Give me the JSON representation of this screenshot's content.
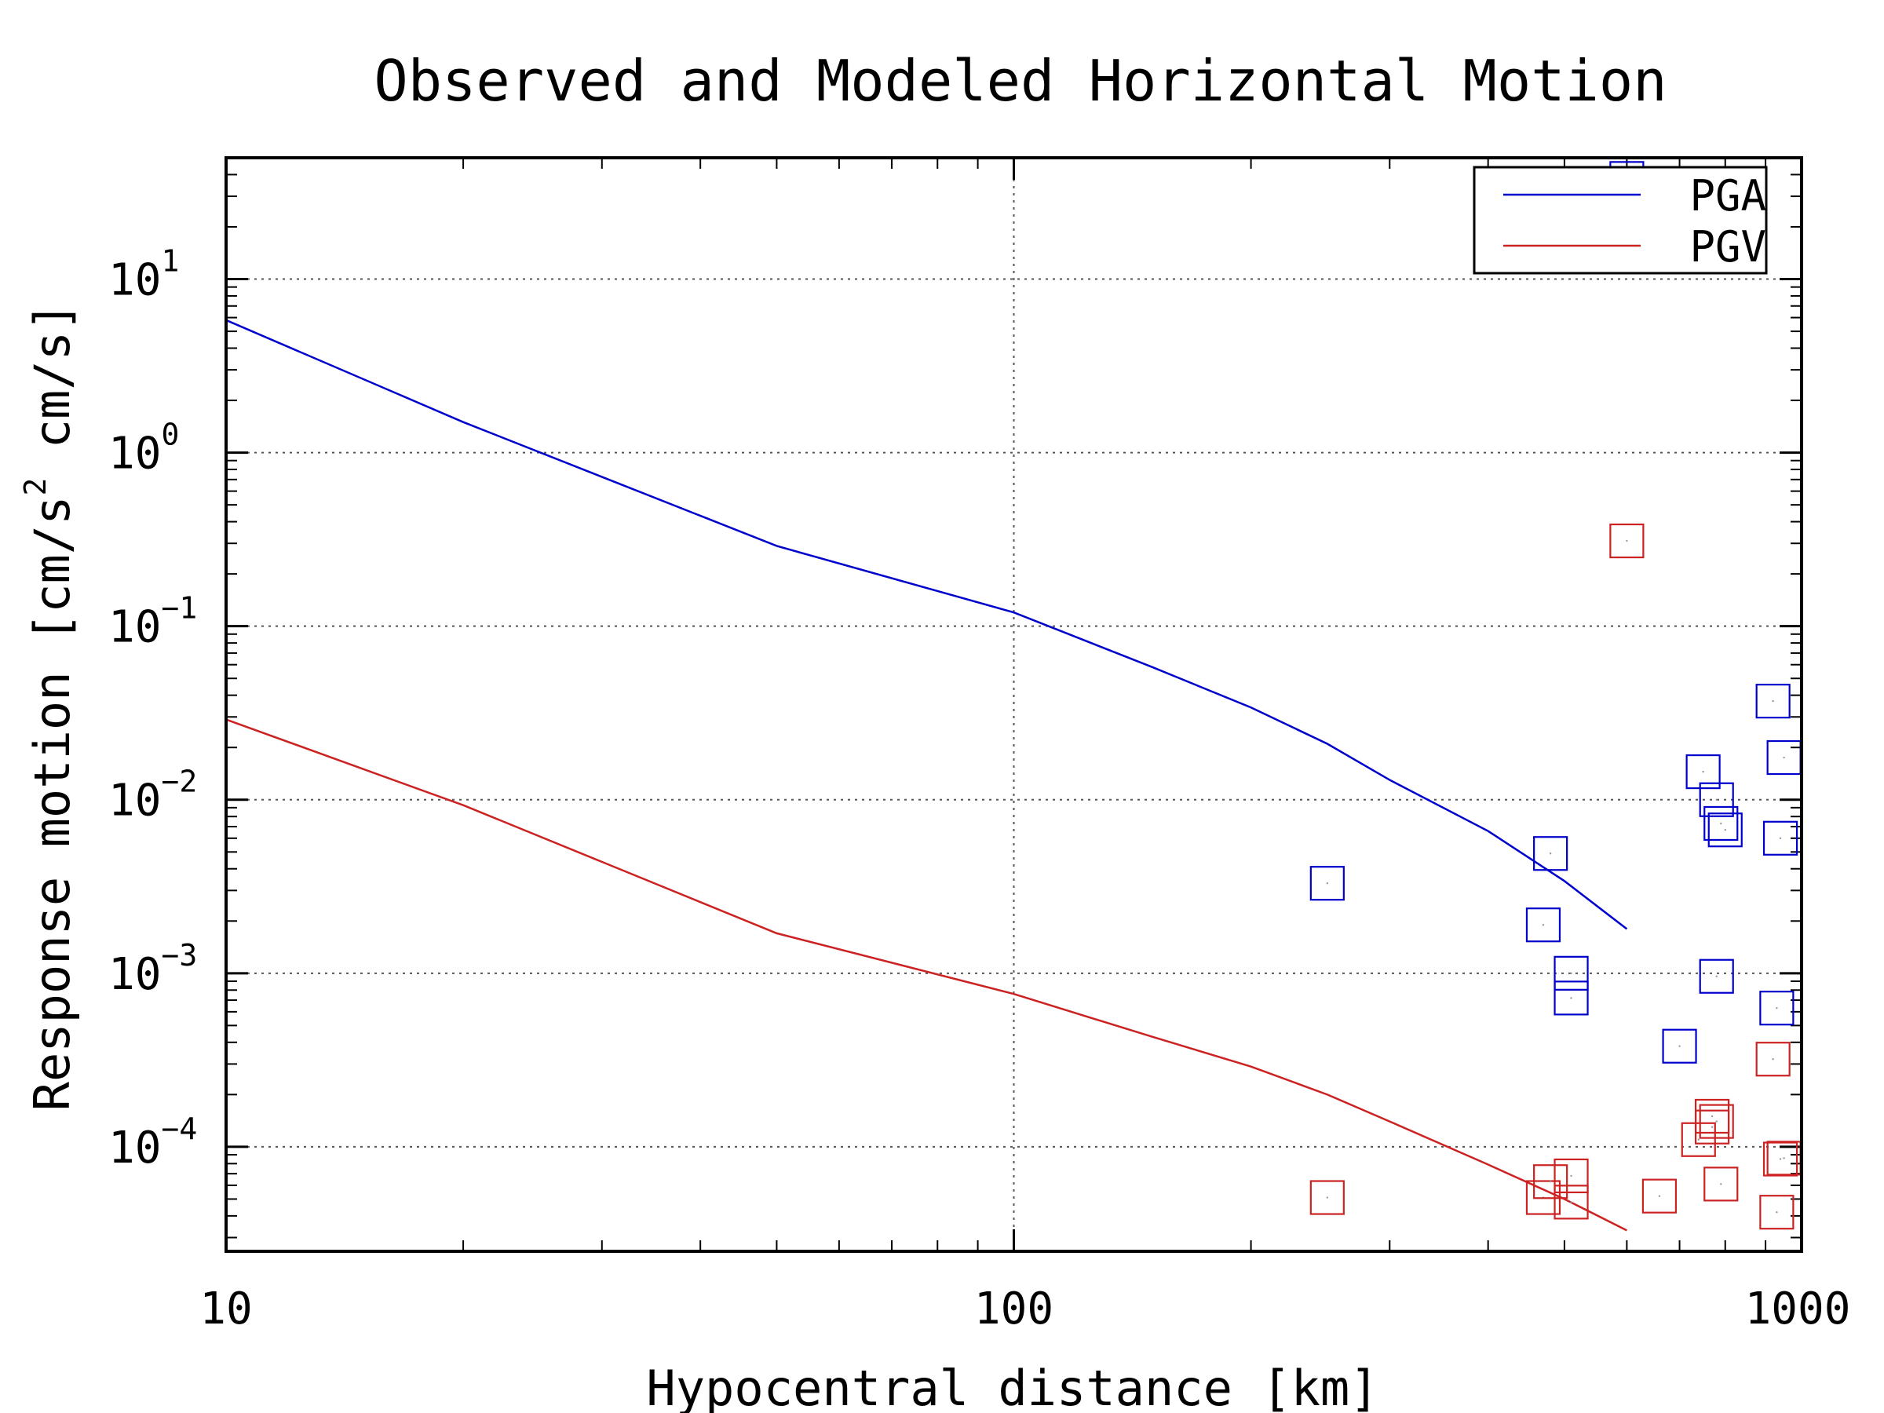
{
  "chart_data": {
    "type": "scatter",
    "title": "Observed and Modeled Horizontal Motion",
    "xlabel": "Hypocentral distance [km]",
    "ylabel": "Response motion  [cm/s",
    "ylabel_sup": "2",
    "ylabel_tail": "  cm/s]",
    "x_scale": "log",
    "y_scale": "log",
    "xlim": [
      10,
      1000
    ],
    "ylim": [
      2.5e-05,
      50
    ],
    "grid": true,
    "legend_position": "top-right",
    "x_ticks": [
      {
        "value": 10,
        "label": "10"
      },
      {
        "value": 100,
        "label": "100"
      },
      {
        "value": 1000,
        "label": "1000"
      }
    ],
    "y_ticks": [
      {
        "value": 0.0001,
        "base": "10",
        "exp": "−4"
      },
      {
        "value": 0.001,
        "base": "10",
        "exp": "−3"
      },
      {
        "value": 0.01,
        "base": "10",
        "exp": "−2"
      },
      {
        "value": 0.1,
        "base": "10",
        "exp": "−1"
      },
      {
        "value": 1,
        "base": "10",
        "exp": "0"
      },
      {
        "value": 10,
        "base": "10",
        "exp": "1"
      }
    ],
    "series": [
      {
        "name": "PGA",
        "color": "#0000cc",
        "model_line": {
          "x": [
            10,
            20,
            50,
            100,
            150,
            200,
            250,
            300,
            400,
            500,
            600
          ],
          "y": [
            5.8,
            1.5,
            0.29,
            0.12,
            0.058,
            0.034,
            0.021,
            0.013,
            0.0066,
            0.0034,
            0.0018
          ]
        },
        "observed": {
          "x": [
            250,
            470,
            480,
            510,
            510,
            600,
            700,
            750,
            780,
            780,
            790,
            800,
            920,
            930,
            940,
            950
          ],
          "y": [
            0.0033,
            0.0019,
            0.0049,
            0.001,
            0.00072,
            38,
            0.00038,
            0.0145,
            0.01,
            0.00096,
            0.0073,
            0.0067,
            0.037,
            0.00063,
            0.006,
            0.0175
          ]
        }
      },
      {
        "name": "PGV",
        "color": "#cc2222",
        "model_line": {
          "x": [
            10,
            20,
            50,
            100,
            150,
            200,
            250,
            300,
            400,
            500,
            600
          ],
          "y": [
            0.029,
            0.0093,
            0.0017,
            0.00076,
            0.00043,
            0.00029,
            0.0002,
            0.00014,
            7.9e-05,
            5e-05,
            3.3e-05
          ]
        },
        "observed": {
          "x": [
            250,
            470,
            480,
            510,
            510,
            600,
            660,
            740,
            770,
            770,
            780,
            790,
            920,
            930,
            940,
            950
          ],
          "y": [
            5.1e-05,
            5.1e-05,
            6.3e-05,
            6.8e-05,
            4.8e-05,
            0.31,
            5.2e-05,
            0.00011,
            0.00013,
            0.00015,
            0.00014,
            6.1e-05,
            0.00032,
            4.2e-05,
            8.5e-05,
            8.6e-05
          ]
        }
      }
    ]
  }
}
